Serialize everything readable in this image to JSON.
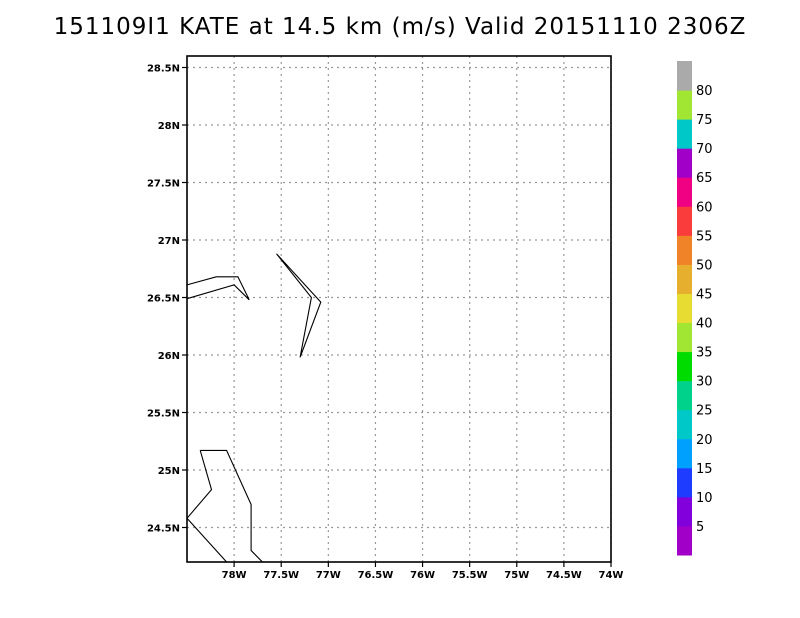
{
  "title": "151109I1 KATE at 14.5 km (m/s) Valid 20151110 2306Z",
  "map": {
    "lon_range": [
      -78.5,
      -74.0
    ],
    "lat_range": [
      24.2,
      28.6
    ],
    "lon_ticks": [
      {
        "value": -78.0,
        "label": "78W"
      },
      {
        "value": -77.5,
        "label": "77.5W"
      },
      {
        "value": -77.0,
        "label": "77W"
      },
      {
        "value": -76.5,
        "label": "76.5W"
      },
      {
        "value": -76.0,
        "label": "76W"
      },
      {
        "value": -75.5,
        "label": "75.5W"
      },
      {
        "value": -75.0,
        "label": "75W"
      },
      {
        "value": -74.5,
        "label": "74.5W"
      },
      {
        "value": -74.0,
        "label": "74W"
      }
    ],
    "lat_ticks": [
      {
        "value": 24.5,
        "label": "24.5N"
      },
      {
        "value": 25.0,
        "label": "25N"
      },
      {
        "value": 25.5,
        "label": "25.5N"
      },
      {
        "value": 26.0,
        "label": "26N"
      },
      {
        "value": 26.5,
        "label": "26.5N"
      },
      {
        "value": 27.0,
        "label": "27N"
      },
      {
        "value": 27.5,
        "label": "27.5N"
      },
      {
        "value": 28.0,
        "label": "28N"
      },
      {
        "value": 28.5,
        "label": "28.5N"
      }
    ],
    "grid": true,
    "coastlines": [
      [
        [
          -78.5,
          26.61
        ],
        [
          -78.19,
          26.68
        ],
        [
          -77.96,
          26.68
        ],
        [
          -77.84,
          26.48
        ],
        [
          -78.0,
          26.61
        ],
        [
          -78.5,
          26.49
        ]
      ],
      [
        [
          -77.55,
          26.88
        ],
        [
          -77.08,
          26.46
        ],
        [
          -77.3,
          25.98
        ],
        [
          -77.18,
          26.5
        ],
        [
          -77.55,
          26.88
        ]
      ],
      [
        [
          -78.36,
          25.17
        ],
        [
          -78.08,
          25.17
        ],
        [
          -77.82,
          24.7
        ],
        [
          -77.82,
          24.3
        ],
        [
          -77.7,
          24.2
        ]
      ],
      [
        [
          -78.36,
          25.17
        ],
        [
          -78.24,
          24.83
        ],
        [
          -78.5,
          24.58
        ]
      ],
      [
        [
          -78.5,
          24.58
        ],
        [
          -78.08,
          24.2
        ]
      ]
    ]
  },
  "colorbar": {
    "labels": [
      "5",
      "10",
      "15",
      "20",
      "25",
      "30",
      "35",
      "40",
      "45",
      "50",
      "55",
      "60",
      "65",
      "70",
      "75",
      "80"
    ],
    "colors": [
      "#a000c8",
      "#8200dc",
      "#1e3cff",
      "#00a0ff",
      "#00c8c8",
      "#00d28c",
      "#00dc00",
      "#a0e632",
      "#e6dc32",
      "#e6af2d",
      "#f08228",
      "#fa3c3c",
      "#f00082",
      "#a000c8",
      "#00c8c8",
      "#a0e632",
      "#aaaaaa"
    ]
  }
}
